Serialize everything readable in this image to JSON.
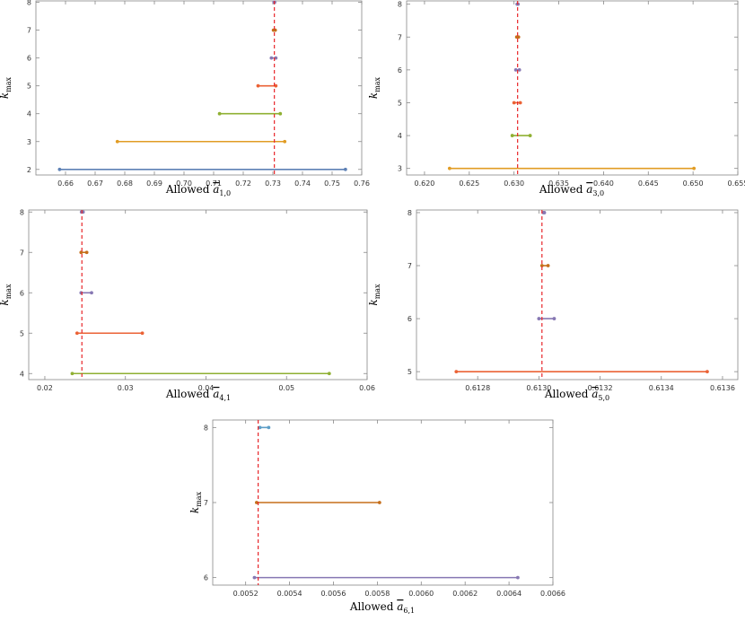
{
  "figure": {
    "colors": {
      "k2": "#5e81b5",
      "k3": "#e19c24",
      "k4": "#8fb032",
      "k5": "#eb6235",
      "k6": "#8778b3",
      "k7": "#c56e1a",
      "k8": "#5d9ec7",
      "reference": "#e8262a",
      "frame": "#888888"
    }
  },
  "chart_data": [
    {
      "id": "a10",
      "type": "interval",
      "xlabel_prefix": "Allowed ",
      "xlabel_sym": "a",
      "xlabel_sub": "1,0",
      "ylabel_main": "k",
      "ylabel_sub": "max",
      "xlim": [
        0.65,
        0.76
      ],
      "ylim": [
        1.8,
        8.05
      ],
      "xticks": [
        0.66,
        0.67,
        0.68,
        0.69,
        0.7,
        0.71,
        0.72,
        0.73,
        0.74,
        0.75,
        0.76
      ],
      "xtick_labels": [
        "0.66",
        "0.67",
        "0.68",
        "0.69",
        "0.70",
        "0.71",
        "0.72",
        "0.73",
        "0.74",
        "0.75",
        "0.76"
      ],
      "yticks": [
        2,
        3,
        4,
        5,
        6,
        7,
        8
      ],
      "ytick_labels": [
        "2",
        "3",
        "4",
        "5",
        "6",
        "7",
        "8"
      ],
      "reference": 0.7305,
      "intervals": [
        {
          "k": 2,
          "low": 0.658,
          "high": 0.7545,
          "color": "#5e81b5"
        },
        {
          "k": 3,
          "low": 0.6775,
          "high": 0.734,
          "color": "#e19c24"
        },
        {
          "k": 4,
          "low": 0.712,
          "high": 0.7325,
          "color": "#8fb032"
        },
        {
          "k": 5,
          "low": 0.725,
          "high": 0.731,
          "color": "#eb6235"
        },
        {
          "k": 6,
          "low": 0.7295,
          "high": 0.731,
          "color": "#8778b3"
        },
        {
          "k": 7,
          "low": 0.7302,
          "high": 0.7308,
          "color": "#c56e1a"
        },
        {
          "k": 8,
          "low": 0.7304,
          "high": 0.7306,
          "color": "#8778b3"
        }
      ]
    },
    {
      "id": "a30",
      "type": "interval",
      "xlabel_prefix": "Allowed ",
      "xlabel_sym": "a",
      "xlabel_sub": "3,0",
      "ylabel_main": "k",
      "ylabel_sub": "max",
      "xlim": [
        0.618,
        0.655
      ],
      "ylim": [
        2.8,
        8.1
      ],
      "xticks": [
        0.62,
        0.625,
        0.63,
        0.635,
        0.64,
        0.645,
        0.65,
        0.655
      ],
      "xtick_labels": [
        "0.620",
        "0.625",
        "0.630",
        "0.635",
        "0.640",
        "0.645",
        "0.650",
        "0.655"
      ],
      "yticks": [
        3,
        4,
        5,
        6,
        7,
        8
      ],
      "ytick_labels": [
        "3",
        "4",
        "5",
        "6",
        "7",
        "8"
      ],
      "reference": 0.6304,
      "intervals": [
        {
          "k": 3,
          "low": 0.6228,
          "high": 0.6501,
          "color": "#e19c24"
        },
        {
          "k": 4,
          "low": 0.6298,
          "high": 0.6318,
          "color": "#8fb032"
        },
        {
          "k": 5,
          "low": 0.63,
          "high": 0.6307,
          "color": "#eb6235"
        },
        {
          "k": 6,
          "low": 0.6302,
          "high": 0.6306,
          "color": "#8778b3"
        },
        {
          "k": 7,
          "low": 0.6303,
          "high": 0.6305,
          "color": "#c56e1a"
        },
        {
          "k": 8,
          "low": 0.63035,
          "high": 0.63045,
          "color": "#8778b3"
        }
      ]
    },
    {
      "id": "a41",
      "type": "interval",
      "xlabel_prefix": "Allowed ",
      "xlabel_sym": "a",
      "xlabel_sub": "4,1",
      "ylabel_main": "k",
      "ylabel_sub": "max",
      "xlim": [
        0.018,
        0.06
      ],
      "ylim": [
        3.85,
        8.05
      ],
      "xticks": [
        0.02,
        0.03,
        0.04,
        0.05,
        0.06
      ],
      "xtick_labels": [
        "0.02",
        "0.03",
        "0.04",
        "0.05",
        "0.06"
      ],
      "yticks": [
        4,
        5,
        6,
        7,
        8
      ],
      "ytick_labels": [
        "4",
        "5",
        "6",
        "7",
        "8"
      ],
      "reference": 0.0246,
      "intervals": [
        {
          "k": 4,
          "low": 0.0234,
          "high": 0.0553,
          "color": "#8fb032"
        },
        {
          "k": 5,
          "low": 0.024,
          "high": 0.0321,
          "color": "#eb6235"
        },
        {
          "k": 6,
          "low": 0.0245,
          "high": 0.0258,
          "color": "#8778b3"
        },
        {
          "k": 7,
          "low": 0.0245,
          "high": 0.0252,
          "color": "#c56e1a"
        },
        {
          "k": 8,
          "low": 0.02455,
          "high": 0.02475,
          "color": "#8778b3"
        }
      ]
    },
    {
      "id": "a50",
      "type": "interval",
      "xlabel_prefix": "Allowed ",
      "xlabel_sym": "a",
      "xlabel_sub": "5,0",
      "ylabel_main": "k",
      "ylabel_sub": "max",
      "xlim": [
        0.6126,
        0.61365
      ],
      "ylim": [
        4.85,
        8.05
      ],
      "xticks": [
        0.6128,
        0.613,
        0.6132,
        0.6134,
        0.6136
      ],
      "xtick_labels": [
        "0.6128",
        "0.6130",
        "0.6132",
        "0.6134",
        "0.6136"
      ],
      "yticks": [
        5,
        6,
        7,
        8
      ],
      "ytick_labels": [
        "5",
        "6",
        "7",
        "8"
      ],
      "reference": 0.61301,
      "intervals": [
        {
          "k": 5,
          "low": 0.61273,
          "high": 0.61355,
          "color": "#eb6235"
        },
        {
          "k": 6,
          "low": 0.613,
          "high": 0.61305,
          "color": "#8778b3"
        },
        {
          "k": 7,
          "low": 0.61301,
          "high": 0.61303,
          "color": "#c56e1a"
        },
        {
          "k": 8,
          "low": 0.613015,
          "high": 0.613018,
          "color": "#8778b3"
        }
      ]
    },
    {
      "id": "a61",
      "type": "interval",
      "xlabel_prefix": "Allowed ",
      "xlabel_sym": "a",
      "xlabel_sub": "6,1",
      "ylabel_main": "k",
      "ylabel_sub": "max",
      "xlim": [
        0.00505,
        0.0066
      ],
      "ylim": [
        5.9,
        8.1
      ],
      "xticks": [
        0.0052,
        0.0054,
        0.0056,
        0.0058,
        0.006,
        0.0062,
        0.0064,
        0.0066
      ],
      "xtick_labels": [
        "0.0052",
        "0.0054",
        "0.0056",
        "0.0058",
        "0.0060",
        "0.0062",
        "0.0064",
        "0.0066"
      ],
      "yticks": [
        6,
        7,
        8
      ],
      "ytick_labels": [
        "6",
        "7",
        "8"
      ],
      "reference": 0.005257,
      "intervals": [
        {
          "k": 6,
          "low": 0.00524,
          "high": 0.00644,
          "color": "#8778b3"
        },
        {
          "k": 7,
          "low": 0.00525,
          "high": 0.00581,
          "color": "#c56e1a"
        },
        {
          "k": 8,
          "low": 0.005265,
          "high": 0.005305,
          "color": "#5d9ec7"
        }
      ]
    }
  ]
}
